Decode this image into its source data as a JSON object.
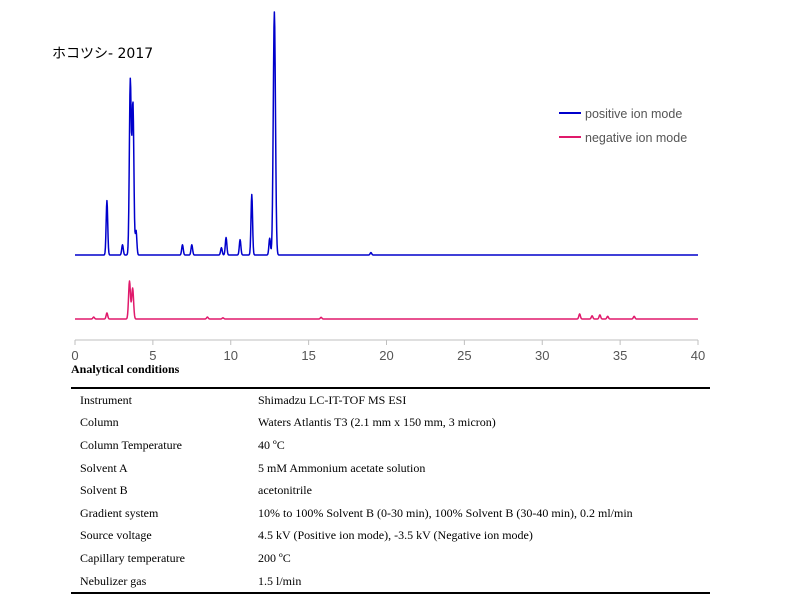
{
  "chart_data": {
    "type": "line",
    "title": "ホコツシ- 2017",
    "xlabel": "",
    "ylabel": "",
    "x_ticks": [
      0,
      5,
      10,
      15,
      20,
      25,
      30,
      35,
      40
    ],
    "xlim": [
      0,
      40
    ],
    "grid": false,
    "legend_position": "right",
    "series": [
      {
        "name": "positive ion mode",
        "color": "#0000cc",
        "peaks": [
          {
            "rt": 2.05,
            "height": 22.4
          },
          {
            "rt": 3.05,
            "height": 4.2
          },
          {
            "rt": 3.55,
            "height": 71.6,
            "width": 0.06
          },
          {
            "rt": 3.72,
            "height": 62.1,
            "width": 0.06
          },
          {
            "rt": 3.92,
            "height": 10.0
          },
          {
            "rt": 6.9,
            "height": 4.2
          },
          {
            "rt": 7.5,
            "height": 4.2
          },
          {
            "rt": 9.4,
            "height": 3.0
          },
          {
            "rt": 9.7,
            "height": 7.2
          },
          {
            "rt": 10.6,
            "height": 6.3
          },
          {
            "rt": 11.35,
            "height": 24.9
          },
          {
            "rt": 12.5,
            "height": 6.9
          },
          {
            "rt": 12.8,
            "height": 100.0,
            "width": 0.07
          },
          {
            "rt": 19.0,
            "height": 1.0
          }
        ]
      },
      {
        "name": "negative ion mode",
        "color": "#e0196b",
        "peaks": [
          {
            "rt": 1.2,
            "height": 0.8
          },
          {
            "rt": 2.05,
            "height": 2.5
          },
          {
            "rt": 3.5,
            "height": 15.6,
            "width": 0.06
          },
          {
            "rt": 3.7,
            "height": 12.7,
            "width": 0.06
          },
          {
            "rt": 8.5,
            "height": 0.8
          },
          {
            "rt": 9.5,
            "height": 0.5
          },
          {
            "rt": 15.8,
            "height": 0.7
          },
          {
            "rt": 32.4,
            "height": 2.1
          },
          {
            "rt": 33.2,
            "height": 1.3
          },
          {
            "rt": 33.7,
            "height": 1.7
          },
          {
            "rt": 34.2,
            "height": 1.1
          },
          {
            "rt": 35.9,
            "height": 1.1
          }
        ]
      }
    ]
  },
  "conditions": {
    "title": "Analytical conditions",
    "rows": [
      {
        "label": "Instrument",
        "value": "Shimadzu LC-IT-TOF MS ESI"
      },
      {
        "label": "Column",
        "value": "Waters Atlantis T3 (2.1 mm x 150 mm, 3 micron)"
      },
      {
        "label": "Column Temperature",
        "value": "40 ºC"
      },
      {
        "label": "Solvent A",
        "value": "5 mM Ammonium acetate solution"
      },
      {
        "label": "Solvent B",
        "value": "acetonitrile"
      },
      {
        "label": "Gradient system",
        "value": "10% to 100% Solvent B (0-30 min), 100% Solvent B (30-40 min), 0.2 ml/min"
      },
      {
        "label": "Source voltage",
        "value": "4.5 kV (Positive ion mode), -3.5 kV (Negative ion mode)"
      },
      {
        "label": "Capillary temperature",
        "value": "200 ºC"
      },
      {
        "label": "Nebulizer gas",
        "value": "1.5 l/min"
      }
    ]
  }
}
